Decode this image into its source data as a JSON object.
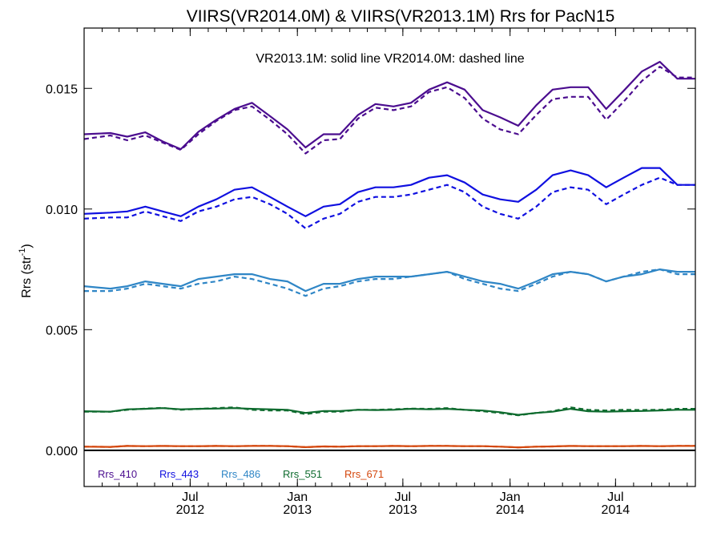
{
  "chart_data": {
    "type": "line",
    "title": "VIIRS(VR2014.0M) & VIIRS(VR2013.1M)  Rrs for PacN15",
    "annotation": "VR2013.1M: solid line   VR2014.0M: dashed line",
    "ylabel": "Rrs (str",
    "ylabel_sup": "-1",
    "ylabel_close": ")",
    "ylim": [
      -0.0015,
      0.0175
    ],
    "xlim": [
      "2012-01-01",
      "2014-11-15"
    ],
    "yticks": [
      "0.000",
      "0.005",
      "0.010",
      "0.015"
    ],
    "xticks": [
      {
        "date": "2012-07-01",
        "month": "Jul",
        "year": "2012"
      },
      {
        "date": "2013-01-01",
        "month": "Jan",
        "year": "2013"
      },
      {
        "date": "2013-07-01",
        "month": "Jul",
        "year": "2013"
      },
      {
        "date": "2014-01-01",
        "month": "Jan",
        "year": "2014"
      },
      {
        "date": "2014-07-01",
        "month": "Jul",
        "year": "2014"
      }
    ],
    "x": [
      "2012-01-01",
      "2012-02-15",
      "2012-03-15",
      "2012-04-15",
      "2012-05-15",
      "2012-06-15",
      "2012-07-15",
      "2012-08-15",
      "2012-09-15",
      "2012-10-15",
      "2012-11-15",
      "2012-12-15",
      "2013-01-15",
      "2013-02-15",
      "2013-03-15",
      "2013-04-15",
      "2013-05-15",
      "2013-06-15",
      "2013-07-15",
      "2013-08-15",
      "2013-09-15",
      "2013-10-15",
      "2013-11-15",
      "2013-12-15",
      "2014-01-15",
      "2014-02-15",
      "2014-03-15",
      "2014-04-15",
      "2014-05-15",
      "2014-06-15",
      "2014-07-15",
      "2014-08-15",
      "2014-09-15",
      "2014-10-15",
      "2014-11-15"
    ],
    "series": [
      {
        "name": "Rrs_410",
        "color": "#4b0d8f",
        "solid": [
          0.0131,
          0.01315,
          0.013,
          0.01318,
          0.0128,
          0.01248,
          0.0132,
          0.0137,
          0.01415,
          0.0144,
          0.01385,
          0.0133,
          0.01255,
          0.0131,
          0.0131,
          0.0139,
          0.01435,
          0.01425,
          0.0144,
          0.01495,
          0.01525,
          0.01495,
          0.0141,
          0.0138,
          0.01345,
          0.0143,
          0.01495,
          0.01505,
          0.01505,
          0.01415,
          0.0149,
          0.0157,
          0.0161,
          0.0154,
          0.0154
        ],
        "dashed": [
          0.0129,
          0.01305,
          0.01285,
          0.01305,
          0.01275,
          0.01245,
          0.0131,
          0.01365,
          0.0141,
          0.01425,
          0.0137,
          0.0131,
          0.0123,
          0.01285,
          0.0129,
          0.01375,
          0.0142,
          0.0141,
          0.01425,
          0.01485,
          0.01505,
          0.0146,
          0.01375,
          0.0133,
          0.0131,
          0.0139,
          0.01455,
          0.01465,
          0.01465,
          0.0137,
          0.01445,
          0.0153,
          0.0159,
          0.01545,
          0.01545
        ]
      },
      {
        "name": "Rrs_443",
        "color": "#1010e0",
        "solid": [
          0.0098,
          0.00985,
          0.0099,
          0.0101,
          0.0099,
          0.0097,
          0.0101,
          0.0104,
          0.0108,
          0.0109,
          0.0105,
          0.0101,
          0.0097,
          0.0101,
          0.0102,
          0.0107,
          0.0109,
          0.0109,
          0.011,
          0.0113,
          0.0114,
          0.0111,
          0.0106,
          0.0104,
          0.0103,
          0.0108,
          0.0114,
          0.0116,
          0.0114,
          0.0109,
          0.0113,
          0.0117,
          0.0117,
          0.011,
          0.011
        ],
        "dashed": [
          0.0096,
          0.00965,
          0.00965,
          0.0099,
          0.0097,
          0.0095,
          0.0099,
          0.0101,
          0.0104,
          0.0105,
          0.0102,
          0.0098,
          0.0092,
          0.0096,
          0.0098,
          0.0103,
          0.0105,
          0.0105,
          0.0106,
          0.0108,
          0.011,
          0.0107,
          0.0101,
          0.0098,
          0.0096,
          0.0101,
          0.0107,
          0.0109,
          0.0108,
          0.0102,
          0.0106,
          0.011,
          0.0113,
          0.011,
          0.011
        ]
      },
      {
        "name": "Rrs_486",
        "color": "#2f86c6",
        "solid": [
          0.0068,
          0.0067,
          0.0068,
          0.007,
          0.0069,
          0.0068,
          0.0071,
          0.0072,
          0.0073,
          0.0073,
          0.0071,
          0.007,
          0.0066,
          0.0069,
          0.0069,
          0.0071,
          0.0072,
          0.0072,
          0.0072,
          0.0073,
          0.0074,
          0.0072,
          0.007,
          0.0069,
          0.0067,
          0.007,
          0.0073,
          0.0074,
          0.0073,
          0.007,
          0.0072,
          0.0073,
          0.0075,
          0.0074,
          0.0074
        ],
        "dashed": [
          0.0066,
          0.0066,
          0.0067,
          0.0069,
          0.0068,
          0.0067,
          0.0069,
          0.007,
          0.0072,
          0.0071,
          0.0069,
          0.0067,
          0.0064,
          0.0067,
          0.0068,
          0.007,
          0.0071,
          0.0071,
          0.0072,
          0.0073,
          0.0074,
          0.0071,
          0.0069,
          0.0067,
          0.0066,
          0.0069,
          0.0072,
          0.0074,
          0.0073,
          0.007,
          0.0072,
          0.0074,
          0.0075,
          0.0073,
          0.0073
        ]
      },
      {
        "name": "Rrs_551",
        "color": "#0e6b2e",
        "solid": [
          0.00162,
          0.0016,
          0.0017,
          0.00172,
          0.00175,
          0.0017,
          0.00172,
          0.00173,
          0.00175,
          0.00172,
          0.0017,
          0.00168,
          0.00155,
          0.00163,
          0.00163,
          0.00168,
          0.00167,
          0.00168,
          0.00172,
          0.0017,
          0.00172,
          0.00168,
          0.00165,
          0.00158,
          0.00147,
          0.00155,
          0.0016,
          0.00172,
          0.00162,
          0.0016,
          0.00162,
          0.00163,
          0.00165,
          0.00168,
          0.00168
        ],
        "dashed": [
          0.0016,
          0.0016,
          0.00168,
          0.00173,
          0.00176,
          0.00168,
          0.00172,
          0.00175,
          0.00178,
          0.00168,
          0.00165,
          0.00165,
          0.0015,
          0.0016,
          0.0016,
          0.00168,
          0.00168,
          0.0017,
          0.00173,
          0.00172,
          0.00175,
          0.00168,
          0.00162,
          0.00155,
          0.00145,
          0.00155,
          0.00162,
          0.00178,
          0.00168,
          0.00165,
          0.00168,
          0.00167,
          0.00168,
          0.00172,
          0.00172
        ]
      },
      {
        "name": "Rrs_671",
        "color": "#d4470d",
        "solid": [
          0.00015,
          0.00014,
          0.00018,
          0.00017,
          0.00018,
          0.00017,
          0.00017,
          0.00018,
          0.00017,
          0.00018,
          0.00018,
          0.00017,
          0.00013,
          0.00016,
          0.00015,
          0.00017,
          0.00017,
          0.00018,
          0.00017,
          0.00018,
          0.00018,
          0.00017,
          0.00017,
          0.00015,
          0.00012,
          0.00015,
          0.00016,
          0.00018,
          0.00017,
          0.00017,
          0.00017,
          0.00018,
          0.00017,
          0.00018,
          0.00018
        ],
        "dashed": [
          0.00015,
          0.00014,
          0.00018,
          0.00017,
          0.00018,
          0.00017,
          0.00017,
          0.00018,
          0.00017,
          0.00018,
          0.00018,
          0.00017,
          0.00013,
          0.00016,
          0.00015,
          0.00017,
          0.00017,
          0.00018,
          0.00017,
          0.00018,
          0.00018,
          0.00017,
          0.00017,
          0.00015,
          0.00012,
          0.00015,
          0.00016,
          0.00018,
          0.00017,
          0.00017,
          0.00017,
          0.00018,
          0.00017,
          0.00018,
          0.00018
        ]
      }
    ],
    "zero_line": true,
    "grid": false,
    "legend_position": "bottom-left"
  }
}
